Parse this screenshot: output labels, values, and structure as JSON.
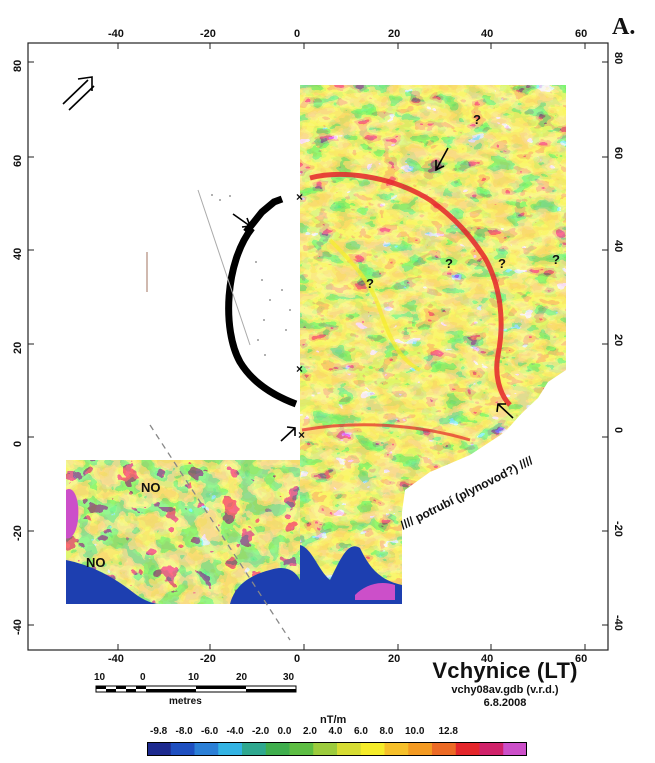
{
  "panel_letter": "A.",
  "map": {
    "title": "Vchynice (LT)",
    "file": "vchy08av.gdb (v.r.d.)",
    "date": "6.8.2008",
    "top_ticks": [
      "-40",
      "-20",
      "0",
      "20",
      "40",
      "60"
    ],
    "bottom_ticks": [
      "-40",
      "-20",
      "0",
      "20",
      "40",
      "60"
    ],
    "left_ticks": [
      "80",
      "60",
      "40",
      "20",
      "0",
      "-20",
      "-40"
    ],
    "right_ticks": [
      "80",
      "60",
      "40",
      "20",
      "0",
      "-20",
      "-40"
    ],
    "annotations": {
      "no_1": "NO",
      "no_2": "NO",
      "q1": "?",
      "q2": "?",
      "q3": "?",
      "q4": "?",
      "q5": "?",
      "pipeline": "//// potrubí (plynovod?) ////",
      "x_mark_1": "×",
      "x_mark_2": "×",
      "x_mark_3": "×"
    },
    "colors": {
      "blue": "#1d3fb0",
      "cyan": "#33b3e3",
      "green": "#4db848",
      "lime": "#b6d33b",
      "yellow": "#f5ec2a",
      "orange": "#f39a22",
      "red": "#e4262b",
      "magenta": "#cc4fc9"
    }
  },
  "scale_bar": {
    "labels": [
      "10",
      "0",
      "10",
      "20",
      "30"
    ],
    "unit": "metres"
  },
  "colorbar": {
    "unit": "nT/m",
    "labels": [
      "-9.8",
      "-8.0",
      "-6.0",
      "-4.0",
      "-2.0",
      "0.0",
      "2.0",
      "4.0",
      "6.0",
      "8.0",
      "10.0",
      "12.8"
    ],
    "colors": [
      "#1d2a8f",
      "#1e4fc0",
      "#2b7fd6",
      "#33b3e3",
      "#2fa88f",
      "#3fae4d",
      "#5dbd43",
      "#9ccb3d",
      "#d6dc33",
      "#f5ec2a",
      "#f6c02a",
      "#f39a22",
      "#ec6a25",
      "#e4262b",
      "#d0226a",
      "#cc4fc9"
    ]
  }
}
